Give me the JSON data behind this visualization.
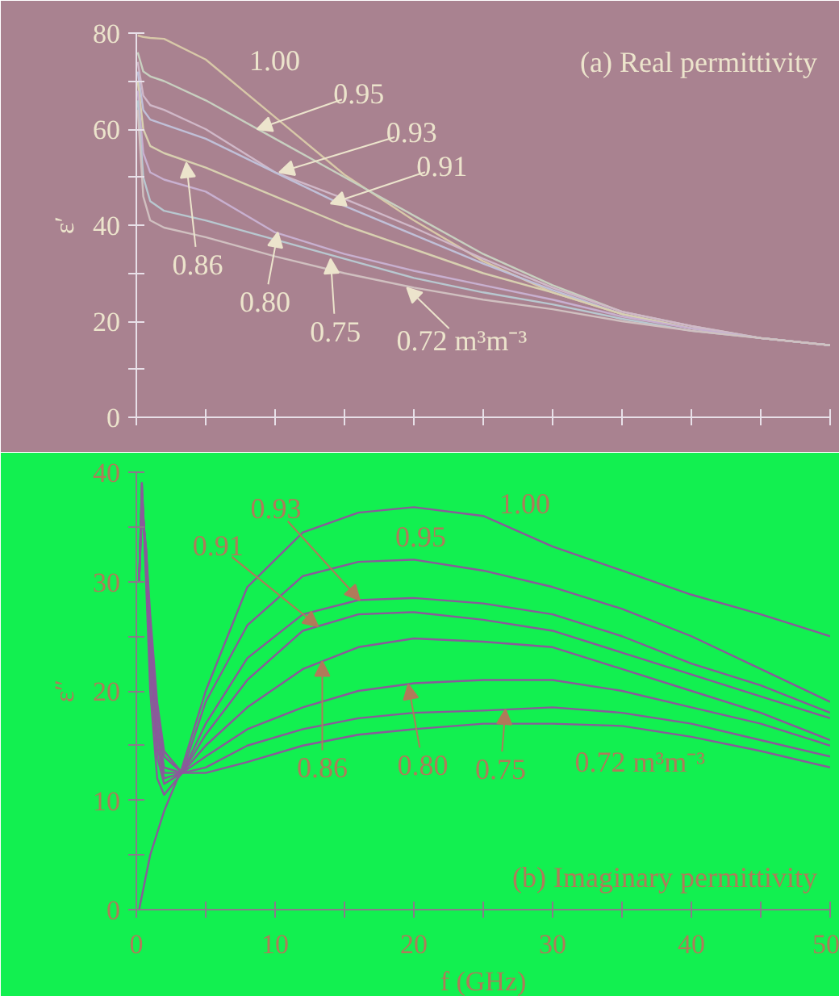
{
  "chart_data": [
    {
      "type": "line",
      "ylabel": "ε′",
      "xlim": [
        0,
        50
      ],
      "ylim": [
        0,
        80
      ],
      "tick_labels": "y",
      "xticks": [
        {
          "value": 0,
          "label": null
        },
        {
          "value": 5,
          "label": null
        },
        {
          "value": 10,
          "label": null
        },
        {
          "value": 15,
          "label": null
        },
        {
          "value": 20,
          "label": null
        },
        {
          "value": 25,
          "label": null
        },
        {
          "value": 30,
          "label": null
        },
        {
          "value": 35,
          "label": null
        },
        {
          "value": 40,
          "label": null
        },
        {
          "value": 45,
          "label": null
        },
        {
          "value": 50,
          "label": null
        }
      ],
      "yticks": [
        0,
        {
          "value": 10,
          "label": null
        },
        20,
        {
          "value": 30,
          "label": null
        },
        40,
        {
          "value": 50,
          "label": null
        },
        60,
        {
          "value": 70,
          "label": null
        },
        80
      ],
      "x": [
        0.1,
        0.5,
        1,
        2,
        5,
        10,
        15,
        20,
        25,
        30,
        35,
        40,
        45,
        50
      ],
      "series": [
        {
          "color": "#d8c8a8",
          "values": [
            79.5,
            79.2,
            79,
            78.8,
            74.5,
            62.5,
            50.5,
            41,
            32.5,
            26,
            21.5,
            18.5,
            16.5,
            15
          ]
        },
        {
          "color": "#c8d0c0",
          "values": [
            76,
            72,
            71,
            70,
            66,
            58,
            50,
            42,
            34,
            27.5,
            22,
            19,
            16.5,
            15
          ]
        },
        {
          "color": "#d0b8c8",
          "values": [
            74,
            67,
            65,
            64,
            60,
            51,
            45.5,
            39.5,
            33,
            27,
            22,
            19,
            16.5,
            15
          ]
        },
        {
          "color": "#c0c0d8",
          "values": [
            72,
            64,
            62,
            61,
            58,
            51,
            44,
            38,
            32,
            26.5,
            21.5,
            18.5,
            16.5,
            15
          ]
        },
        {
          "color": "#d8d0b0",
          "values": [
            70,
            60,
            56.5,
            55,
            52,
            46,
            40,
            35,
            30,
            26,
            21.5,
            18.5,
            16.5,
            15
          ]
        },
        {
          "color": "#c8b0d0",
          "values": [
            68,
            55,
            51,
            49.5,
            47,
            38.5,
            34,
            30.5,
            27.5,
            24.5,
            21,
            18.5,
            16.5,
            15
          ]
        },
        {
          "color": "#b8c8d0",
          "values": [
            66,
            50,
            45,
            43,
            41,
            37,
            33,
            29,
            26,
            23.5,
            20.5,
            18,
            16.5,
            15
          ]
        },
        {
          "color": "#d0c0c0",
          "values": [
            64,
            46,
            41,
            39.5,
            37.5,
            33.5,
            30,
            27,
            24.5,
            22.5,
            20,
            18,
            16.5,
            15
          ]
        }
      ],
      "annotations": [
        {
          "text": "1.00",
          "x": 8,
          "y": 67.5
        },
        {
          "text": "0.95",
          "x": 8.7,
          "y": 60
        },
        {
          "text": "0.93",
          "x": 10.3,
          "y": 51
        },
        {
          "text": "0.91",
          "x": 14,
          "y": 44.5
        },
        {
          "text": "0.86",
          "x": 3.6,
          "y": 53
        },
        {
          "text": "0.80",
          "x": 10.2,
          "y": 38.5
        },
        {
          "text": "0.75",
          "x": 14,
          "y": 33
        },
        {
          "text": "0.72 m³m⁻³",
          "x": 19.5,
          "y": 27
        },
        "(a) Real permittivity"
      ]
    },
    {
      "type": "line",
      "ylabel": "ε″",
      "xlabel": "f (GHz)",
      "xlim": [
        0,
        50
      ],
      "ylim": [
        0,
        40
      ],
      "xticks": [
        0,
        {
          "value": 5,
          "label": null
        },
        10,
        {
          "value": 15,
          "label": null
        },
        20,
        {
          "value": 25,
          "label": null
        },
        30,
        {
          "value": 35,
          "label": null
        },
        40,
        {
          "value": 45,
          "label": null
        },
        50
      ],
      "yticks": [
        0,
        {
          "value": 5,
          "label": null
        },
        10,
        {
          "value": 15,
          "label": null
        },
        20,
        {
          "value": 25,
          "label": null
        },
        30,
        {
          "value": 35,
          "label": null
        },
        40
      ],
      "x": [
        0.2,
        0.4,
        0.7,
        1,
        1.5,
        2,
        3.3,
        5,
        8,
        12,
        16,
        20,
        25,
        30,
        35,
        40,
        45,
        50
      ],
      "series": [
        {
          "color": "#8a5a9a",
          "x": [
            0.2,
            1,
            2,
            3.3,
            5,
            8,
            12,
            16,
            20,
            25,
            30,
            35,
            40,
            45,
            50
          ],
          "values": [
            0,
            5,
            9,
            13,
            20,
            29.5,
            34.5,
            36.3,
            36.8,
            36,
            33.2,
            31,
            28.8,
            27,
            25
          ]
        },
        {
          "color": "#8a5a9a",
          "values": [
            30,
            39,
            30,
            20,
            12,
            10.5,
            12.5,
            19,
            26,
            30.5,
            31.8,
            32,
            31,
            29.5,
            27.5,
            25,
            22,
            19
          ]
        },
        {
          "color": "#8a5a9a",
          "values": [
            30,
            39,
            31,
            22,
            14,
            11.5,
            12.5,
            17,
            23,
            27,
            28.3,
            28.5,
            28,
            27,
            25,
            22.5,
            20.5,
            18
          ]
        },
        {
          "color": "#8a5a9a",
          "values": [
            30,
            38,
            32,
            23,
            15,
            12,
            12.5,
            16,
            21,
            25.5,
            27,
            27.2,
            26.5,
            25.5,
            23.5,
            21.5,
            19.5,
            17.5
          ]
        },
        {
          "color": "#8a5a9a",
          "values": [
            30,
            38,
            32,
            24,
            16,
            12.5,
            12.5,
            15,
            18.5,
            22,
            24,
            24.8,
            24.5,
            24,
            22,
            20,
            18,
            15.5
          ]
        },
        {
          "color": "#8a5a9a",
          "values": [
            30,
            37,
            33,
            25,
            17,
            13,
            12.5,
            14,
            16.5,
            18.5,
            20,
            20.7,
            21,
            21,
            20,
            18.5,
            17,
            15
          ]
        },
        {
          "color": "#8a5a9a",
          "values": [
            30,
            37,
            33,
            26,
            18,
            14,
            12.5,
            13,
            15,
            16.5,
            17.5,
            18,
            18.2,
            18.5,
            18,
            17,
            15.5,
            14
          ]
        },
        {
          "color": "#8a5a9a",
          "values": [
            30,
            36,
            33,
            27,
            19,
            14.5,
            12.5,
            12.5,
            13.5,
            15,
            16,
            16.5,
            17,
            17,
            16.8,
            15.8,
            14.5,
            13
          ]
        }
      ],
      "annotations": [
        {
          "text": "1.00",
          "x": 28,
          "y": 34.3
        },
        {
          "text": "0.95",
          "x": 20.5,
          "y": 32
        },
        {
          "text": "0.93",
          "x": 16.1,
          "y": 28.3
        },
        {
          "text": "0.91",
          "x": 13.1,
          "y": 25.9
        },
        {
          "text": "0.86",
          "x": 13.4,
          "y": 22.7
        },
        {
          "text": "0.80",
          "x": 19.6,
          "y": 20.6
        },
        {
          "text": "0.75",
          "x": 26.6,
          "y": 18.3
        },
        {
          "text": "0.72 m³m⁻³",
          "x": 36.3,
          "y": 16.6
        },
        "(b) Imaginary permittivity"
      ]
    }
  ]
}
